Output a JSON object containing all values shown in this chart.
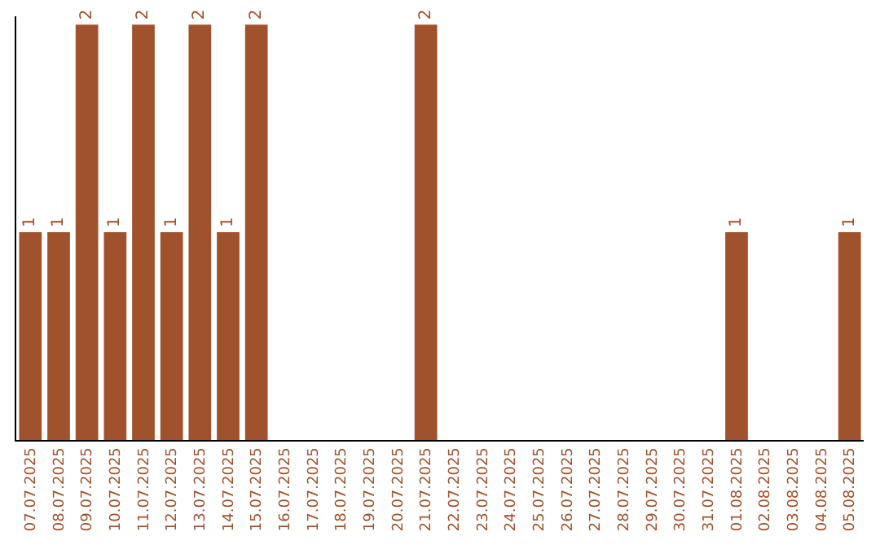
{
  "chart_data": {
    "type": "bar",
    "categories": [
      "07.07.2025",
      "08.07.2025",
      "09.07.2025",
      "10.07.2025",
      "11.07.2025",
      "12.07.2025",
      "13.07.2025",
      "14.07.2025",
      "15.07.2025",
      "16.07.2025",
      "17.07.2025",
      "18.07.2025",
      "19.07.2025",
      "20.07.2025",
      "21.07.2025",
      "22.07.2025",
      "23.07.2025",
      "24.07.2025",
      "25.07.2025",
      "26.07.2025",
      "27.07.2025",
      "28.07.2025",
      "29.07.2025",
      "30.07.2025",
      "31.07.2025",
      "01.08.2025",
      "02.08.2025",
      "03.08.2025",
      "04.08.2025",
      "05.08.2025"
    ],
    "values": [
      1,
      1,
      2,
      1,
      2,
      1,
      2,
      1,
      2,
      0,
      0,
      0,
      0,
      0,
      2,
      0,
      0,
      0,
      0,
      0,
      0,
      0,
      0,
      0,
      0,
      1,
      0,
      0,
      0,
      1
    ],
    "value_labels": [
      "1",
      "1",
      "2",
      "1",
      "2",
      "1",
      "2",
      "1",
      "2",
      null,
      null,
      null,
      null,
      null,
      "2",
      null,
      null,
      null,
      null,
      null,
      null,
      null,
      null,
      null,
      null,
      "1",
      null,
      null,
      null,
      "1"
    ],
    "color": "#a0522d",
    "ylim": [
      0,
      2.04
    ],
    "tick_labels": "x",
    "legend": false
  }
}
